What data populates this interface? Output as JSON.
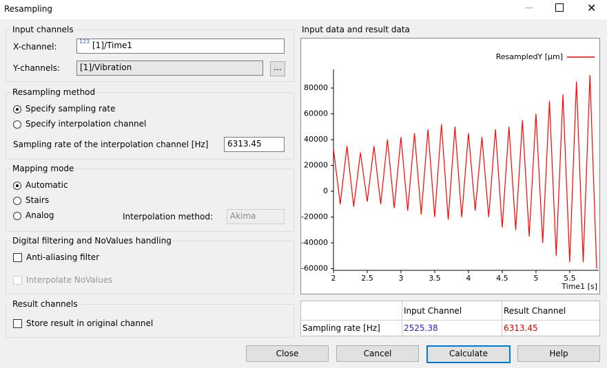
{
  "window": {
    "title": "Resampling"
  },
  "input_channels": {
    "title": "Input channels",
    "x_label": "X-channel:",
    "x_icon": "123",
    "x_value": "[1]/Time1",
    "y_label": "Y-channels:",
    "y_value": "[1]/Vibration",
    "browse": "..."
  },
  "resampling_method": {
    "title": "Resampling method",
    "options": [
      "Specify sampling rate",
      "Specify interpolation channel"
    ],
    "rate_label": "Sampling rate of the interpolation channel [Hz]",
    "rate_value": "6313.45"
  },
  "mapping_mode": {
    "title": "Mapping mode",
    "options": [
      "Automatic",
      "Stairs",
      "Analog"
    ],
    "interp_label": "Interpolation method:",
    "interp_value": "Akima"
  },
  "filtering": {
    "title": "Digital filtering and NoValues handling",
    "options": [
      "Anti-aliasing filter",
      "Interpolate NoValues"
    ]
  },
  "result_channels": {
    "title": "Result channels",
    "options": [
      "Store result in original channel"
    ]
  },
  "chart_panel": {
    "title": "Input data and result data"
  },
  "chart_data": {
    "type": "line",
    "x_label": "Time1 [s]",
    "x": [
      2.0,
      2.1,
      2.2,
      2.3,
      2.4,
      2.5,
      2.6,
      2.7,
      2.8,
      2.9,
      3.0,
      3.1,
      3.2,
      3.3,
      3.4,
      3.5,
      3.6,
      3.7,
      3.8,
      3.9,
      4.0,
      4.1,
      4.2,
      4.3,
      4.4,
      4.5,
      4.6,
      4.7,
      4.8,
      4.9,
      5.0,
      5.1,
      5.2,
      5.3,
      5.4,
      5.5,
      5.6,
      5.7,
      5.8,
      5.9
    ],
    "series": [
      {
        "name": "ResampledY [µm]",
        "color": "#ff0000",
        "values": [
          33000,
          -10000,
          35000,
          -12000,
          30000,
          -8000,
          35000,
          -10000,
          40000,
          -13000,
          42000,
          -15000,
          45000,
          -18000,
          48000,
          -20000,
          52000,
          -22000,
          50000,
          -20000,
          45000,
          -15000,
          42000,
          -20000,
          48000,
          -28000,
          50000,
          -30000,
          55000,
          -35000,
          60000,
          -40000,
          70000,
          -50000,
          75000,
          -55000,
          85000,
          -55000,
          90000,
          -60000
        ]
      }
    ],
    "xlim": [
      2,
      5.93
    ],
    "ylim": [
      -61300,
      94400
    ],
    "xticks": [
      2,
      2.5,
      3,
      3.5,
      4,
      4.5,
      5,
      5.5
    ],
    "yticks": [
      -60000,
      -40000,
      -20000,
      0,
      20000,
      40000,
      60000,
      80000
    ],
    "legend": "top-right"
  },
  "table": {
    "header": [
      "Input Channel",
      "Result Channel"
    ],
    "rows": [
      [
        "Sampling rate [Hz]",
        "2525.38",
        "6313.45"
      ]
    ]
  },
  "buttons": [
    "Close",
    "Cancel",
    "Calculate",
    "Help"
  ]
}
